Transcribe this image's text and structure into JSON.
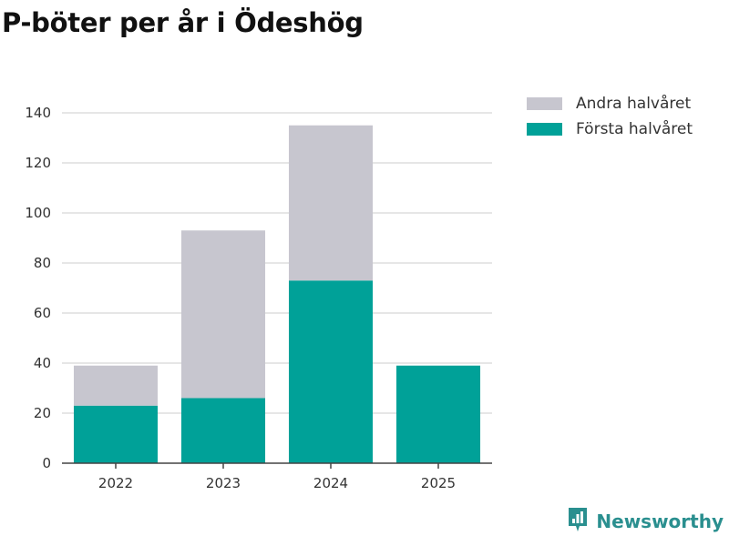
{
  "title": "P-böter per år i Ödeshög",
  "colors": {
    "first_half": "#00a198",
    "second_half": "#c7c6cf",
    "grid": "#dddddd",
    "brand": "#2a8f8f"
  },
  "chart_data": {
    "type": "bar",
    "stacked": true,
    "title": "P-böter per år i Ödeshög",
    "categories": [
      "2022",
      "2023",
      "2024",
      "2025"
    ],
    "series": [
      {
        "name": "Första halvåret",
        "values": [
          23,
          26,
          73,
          39
        ]
      },
      {
        "name": "Andra halvåret",
        "values": [
          16,
          67,
          62,
          0
        ]
      }
    ],
    "y_ticks": [
      0,
      20,
      40,
      60,
      80,
      100,
      120,
      140
    ],
    "ylim": [
      0,
      140
    ],
    "xlabel": "",
    "ylabel": "",
    "legend_position": "top-right",
    "grid": true
  },
  "legend": [
    {
      "label": "Andra halvåret",
      "color_key": "second_half"
    },
    {
      "label": "Första halvåret",
      "color_key": "first_half"
    }
  ],
  "brand": {
    "name": "Newsworthy",
    "logo_icon": "chart-logo-icon"
  }
}
